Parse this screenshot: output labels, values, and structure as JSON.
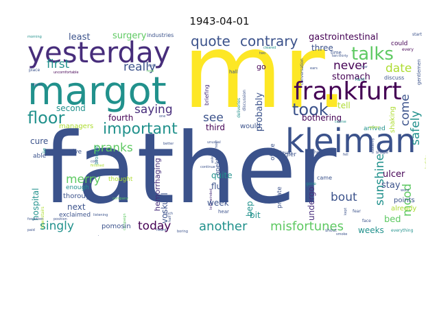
{
  "title": "1943-04-01",
  "colors": {
    "navy": "#3b528b",
    "teal": "#21918c",
    "purple": "#440154",
    "indigo": "#472d7b",
    "green": "#5ec962",
    "lime": "#addc30",
    "yellow": "#fde725",
    "blue": "#2c728e",
    "lightgreen": "#90d743",
    "seagreen": "#28ae80"
  },
  "words": {
    "mr": "mr.",
    "father": "father",
    "margot": "margot",
    "yesterday": "yesterday",
    "kleiman": "kleiman",
    "frankfurt": "frankfurt",
    "talks": "talks",
    "took": "took",
    "important": "important",
    "floor": "floor",
    "quote": "quote",
    "contrary": "contrary",
    "gastrointestinal": "gastrointestinal",
    "really": "really",
    "first": "first",
    "saying": "saying",
    "pranks": "pranks",
    "see": "see",
    "merry": "merry",
    "never": "never",
    "date": "date",
    "come": "come",
    "safely": "safely",
    "sunshine": "sunshine",
    "mood": "mood",
    "bout": "bout",
    "another": "another",
    "misfortunes": "misfortunes",
    "today": "today",
    "singly": "singly",
    "least": "least",
    "surgery": "surgery",
    "three": "three",
    "stomach": "stomach",
    "probably": "probably",
    "tell": "tell",
    "bothering": "bothering",
    "second": "second",
    "fourth": "fourth",
    "managers": "managers",
    "cure": "cure",
    "third": "third",
    "would": "would",
    "quite": "quite",
    "flu": "flu",
    "week": "week",
    "bit": "bit",
    "bep": "bep",
    "undergo": "undergo",
    "ulcer": "ulcer",
    "stay": "stay",
    "bed": "bed",
    "weeks": "weeks",
    "next": "next",
    "hospital": "hospital",
    "voskuijl": "voskuijl",
    "hemorrhaging": "hemorrhaging",
    "opekta": "opekta",
    "kugler": "kugler",
    "go": "go",
    "industries": "industries",
    "pomosin": "pomosin",
    "exclaimed": "exclaimed",
    "thorough": "thorough",
    "enough": "enough",
    "thought": "thought",
    "private": "private",
    "came": "came",
    "points": "points",
    "already": "already",
    "could": "could",
    "shaking": "shaking",
    "arrived": "arrived",
    "give": "give",
    "able": "able",
    "hall": "hall",
    "briefing": "briefing",
    "discussion": "discussion",
    "deliveries": "deliveries",
    "office": "office",
    "linoleum": "linoleum",
    "hours": "hours",
    "gentlemen": "gentlemen",
    "gone": "gone",
    "hear": "hear",
    "fear": "fear",
    "face": "face",
    "everything": "everything",
    "paid": "paid",
    "boring": "boring",
    "start": "start",
    "every": "every",
    "time": "time",
    "ten_thirty": "ten-thirty",
    "discuss": "discuss",
    "hard": "hard",
    "conversation": "conversation",
    "morning": "morning",
    "place": "place",
    "uncomfortable": "uncomfortable",
    "voices": "voices",
    "forgotten": "forgotten",
    "position": "position",
    "listening": "listening",
    "campaign": "campaign",
    "touch": "touch",
    "heard": "heard",
    "long_winded": "long-winded",
    "shout": "shout",
    "kept": "kept",
    "suddenly": "suddenly",
    "shape": "shape",
    "ears": "ears",
    "mar": "mar",
    "two": "two",
    "cleared": "cleared",
    "fell": "fell",
    "cold": "cold",
    "better": "better",
    "asleep": "asleep",
    "unusual": "unusual",
    "hour": "hour",
    "continue": "continue",
    "half": "half",
    "good": "good",
    "lie": "lie",
    "finished": "finished",
    "posts": "posts",
    "now": "now",
    "one": "one",
    "brought": "brought",
    "agony": "agony",
    "course": "course",
    "word": "word",
    "luckily": "luckily",
    "company": "company",
    "downstairs": "downstairs",
    "smoke": "smoke"
  }
}
